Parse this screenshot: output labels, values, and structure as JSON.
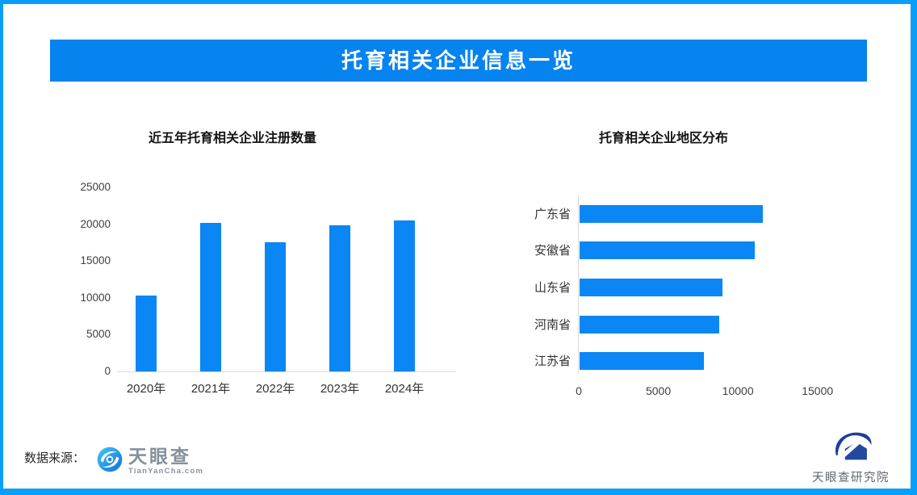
{
  "header": {
    "title": "托育相关企业信息一览"
  },
  "colors": {
    "border": "#099ef7",
    "banner_bg": "#0583ef",
    "bar": "#0a86f5",
    "axis_line": "#d9d9d9",
    "banner_text": "#ffffff"
  },
  "chart_data": [
    {
      "type": "bar",
      "orientation": "vertical",
      "title": "近五年托育相关企业注册数量",
      "categories": [
        "2020年",
        "2021年",
        "2022年",
        "2023年",
        "2024年"
      ],
      "values": [
        10300,
        20200,
        17500,
        19800,
        20500
      ],
      "xlabel": "",
      "ylabel": "",
      "ylim": [
        0,
        25000
      ],
      "yticks": [
        0,
        5000,
        10000,
        15000,
        20000,
        25000
      ],
      "grid": false,
      "legend": "none",
      "bar_color": "#0a86f5"
    },
    {
      "type": "bar",
      "orientation": "horizontal",
      "title": "托育相关企业地区分布",
      "categories": [
        "广东省",
        "安徽省",
        "山东省",
        "河南省",
        "江苏省"
      ],
      "values": [
        11500,
        11000,
        9000,
        8800,
        7800
      ],
      "xlabel": "",
      "ylabel": "",
      "xlim": [
        0,
        17500
      ],
      "xticks": [
        0,
        5000,
        10000,
        15000
      ],
      "grid": false,
      "legend": "none",
      "bar_color": "#0a86f5"
    }
  ],
  "footer": {
    "source_label": "数据来源：",
    "tianyancha": {
      "name": "天眼查",
      "subtitle": "TianYanCha.com"
    },
    "institute": {
      "name": "天眼查研究院"
    }
  }
}
